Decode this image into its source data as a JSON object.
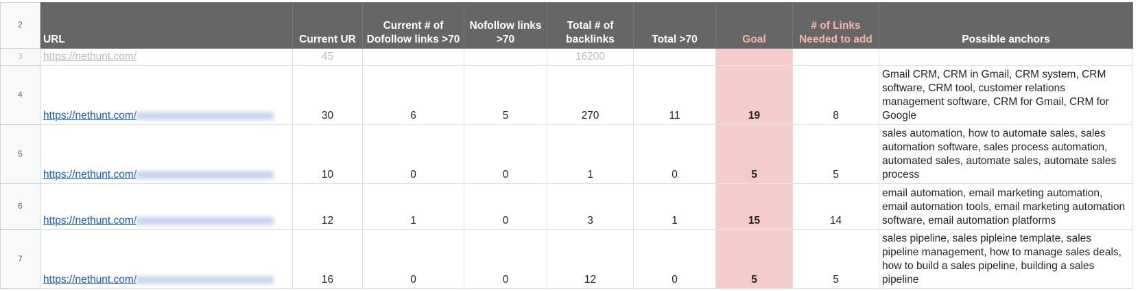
{
  "row_numbers": [
    "2",
    "3",
    "4",
    "5",
    "6",
    "7"
  ],
  "table": {
    "header": [
      "URL",
      "Current UR",
      "Current # of Dofollow links >70",
      "Nofollow links >70",
      "Total # of backlinks",
      "Total >70",
      "Goal",
      "# of Links Needed to add",
      "Possible anchors"
    ],
    "rows": [
      [
        "https://nethunt.com/",
        45,
        null,
        null,
        16200,
        null,
        null,
        null,
        null
      ],
      [
        "https://nethunt.com/",
        30,
        6,
        5,
        270,
        11,
        19,
        8,
        "Gmail CRM, CRM in Gmail, CRM system, CRM software, CRM tool, customer relations management software, CRM for Gmail, CRM for Google"
      ],
      [
        "https://nethunt.com/",
        10,
        0,
        0,
        1,
        0,
        5,
        5,
        "sales automation, how to automate sales, sales automation software, sales process automation, automated sales, automate sales, automate sales process"
      ],
      [
        "https://nethunt.com/",
        12,
        1,
        0,
        3,
        1,
        15,
        14,
        "email automation, email marketing automation, email automation tools, email marketing automation software, email automation platforms"
      ],
      [
        "https://nethunt.com/",
        16,
        0,
        0,
        12,
        0,
        5,
        5,
        "sales pipeline, sales pipleine template, sales pipeline management, how to manage sales deals, how to build a sales pipeline, building a sales pipeline"
      ]
    ]
  }
}
